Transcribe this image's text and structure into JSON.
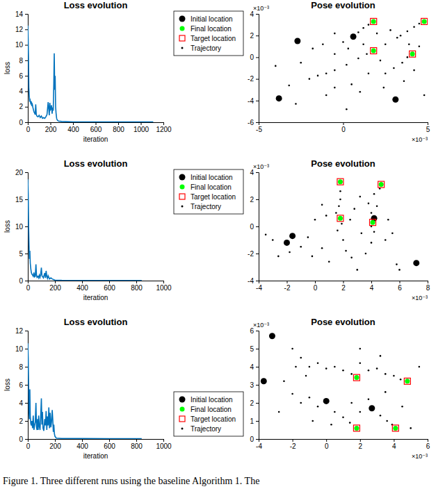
{
  "chart_data": [
    {
      "type": "line",
      "title": "Loss evolution",
      "x_label": "iteration",
      "y_label": "loss",
      "xlim": [
        0,
        1200
      ],
      "xticks": [
        0,
        200,
        400,
        600,
        800,
        1000,
        1200
      ],
      "ylim": [
        0,
        14
      ],
      "yticks": [
        0,
        2,
        4,
        6,
        8,
        10,
        12,
        14
      ],
      "x": [
        0,
        3,
        6,
        9,
        12,
        16,
        20,
        25,
        30,
        35,
        40,
        45,
        50,
        55,
        60,
        65,
        70,
        75,
        80,
        90,
        100,
        110,
        120,
        130,
        140,
        150,
        160,
        170,
        180,
        185,
        190,
        195,
        200,
        205,
        210,
        215,
        220,
        225,
        230,
        234,
        238,
        242,
        246,
        250,
        255,
        260,
        270,
        300,
        400,
        600,
        800,
        1000,
        1110
      ],
      "series": [
        {
          "color": "#0072bd",
          "values": [
            12.5,
            10.8,
            8.5,
            4.5,
            3.6,
            2.8,
            2.9,
            2.5,
            2.7,
            2.1,
            2.3,
            1.9,
            1.6,
            1.3,
            1.2,
            1.0,
            2.3,
            1.0,
            0.8,
            0.7,
            0.9,
            0.6,
            0.8,
            0.5,
            0.6,
            0.5,
            0.7,
            1.0,
            2.6,
            1.8,
            0.9,
            2.5,
            1.6,
            1.7,
            2.2,
            1.1,
            1.9,
            1.5,
            5.0,
            8.9,
            4.2,
            6.0,
            2.0,
            1.2,
            0.5,
            0.3,
            0.15,
            0.1,
            0.05,
            0.04,
            0.03,
            0.03,
            0.03
          ]
        }
      ]
    },
    {
      "type": "scatter",
      "title": "Pose evolution",
      "legend": "top-left",
      "xlim": [
        -5,
        5
      ],
      "xticks": [
        -5,
        0,
        5
      ],
      "ylim": [
        -6,
        4
      ],
      "yticks": [
        -6,
        -4,
        -2,
        0,
        2,
        4
      ],
      "annotations": [
        {
          "text": "×10⁻³",
          "axis": "y"
        },
        {
          "text": "×10⁻³",
          "axis": "x"
        }
      ],
      "series": [
        {
          "name": "Initial location",
          "color": "#000000",
          "marker": "circle",
          "x": [
            -3.8,
            -2.7,
            3.1,
            0.6
          ],
          "values": [
            -3.8,
            1.5,
            -3.9,
            1.9
          ]
        },
        {
          "name": "Final location",
          "color": "#00ff00",
          "marker": "circle",
          "x": [
            1.8,
            4.8,
            1.8,
            4.1
          ],
          "values": [
            3.3,
            3.3,
            0.6,
            0.3
          ]
        },
        {
          "name": "Target location",
          "color": "#ff0000",
          "marker": "square",
          "x": [
            1.8,
            4.8,
            1.8,
            4.1
          ],
          "values": [
            3.3,
            3.3,
            0.6,
            0.3
          ]
        },
        {
          "name": "Trajectory",
          "color": "#000000",
          "marker": "point",
          "x": [
            0.9,
            1.2,
            1.5,
            3.4,
            3.8,
            4.2,
            4.5,
            -1.0,
            -0.5,
            0.2,
            0.9,
            1.4,
            2.5,
            3.0,
            3.5,
            3.8,
            -2.5,
            -2.0,
            -1.8,
            -1.2,
            -0.5,
            0.0,
            -0.5,
            0.3,
            1.2,
            2.0,
            2.5,
            2.8,
            2.2,
            1.5,
            0.5,
            -0.5,
            1.0,
            2.4,
            3.6,
            4.2,
            4.5,
            3.9,
            -3.2,
            -4.0,
            -1.0,
            4.8,
            0.2,
            -2.8,
            3.2,
            -1.5
          ],
          "values": [
            2.3,
            2.7,
            3.0,
            2.0,
            2.4,
            2.8,
            3.1,
            -1.5,
            -1.2,
            -0.7,
            -0.1,
            0.3,
            -1.5,
            -1.0,
            -0.5,
            0.0,
            -0.5,
            -2.0,
            0.8,
            1.2,
            2.2,
            1.4,
            0.3,
            0.8,
            1.2,
            2.2,
            1.2,
            2.5,
            -0.3,
            -1.5,
            -2.5,
            -2.8,
            -3.2,
            -2.8,
            -2.2,
            -1.2,
            1.0,
            1.2,
            -2.6,
            -0.8,
            -3.5,
            -3.5,
            -4.8,
            -4.3,
            1.8,
            -1.7
          ]
        }
      ]
    },
    {
      "type": "line",
      "title": "Loss evolution",
      "x_label": "iteration",
      "y_label": "loss",
      "xlim": [
        0,
        1000
      ],
      "xticks": [
        0,
        200,
        400,
        600,
        800,
        1000
      ],
      "ylim": [
        0,
        20
      ],
      "yticks": [
        0,
        5,
        10,
        15,
        20
      ],
      "x": [
        0,
        3,
        6,
        9,
        12,
        15,
        18,
        22,
        26,
        30,
        35,
        40,
        45,
        50,
        55,
        60,
        64,
        68,
        75,
        80,
        85,
        90,
        95,
        100,
        104,
        110,
        115,
        120,
        125,
        130,
        135,
        140,
        145,
        150,
        160,
        170,
        180,
        190,
        200,
        250,
        400,
        600,
        840
      ],
      "series": [
        {
          "color": "#0072bd",
          "values": [
            18.7,
            16,
            10,
            6.5,
            4.0,
            5.5,
            3.2,
            2.2,
            1.5,
            1.2,
            1.0,
            0.8,
            1.5,
            0.7,
            0.8,
            3.0,
            1.0,
            0.6,
            0.8,
            0.5,
            1.0,
            0.6,
            1.2,
            2.4,
            0.9,
            0.7,
            0.5,
            1.0,
            1.4,
            0.5,
            1.8,
            0.8,
            0.4,
            0.9,
            0.3,
            0.5,
            0.3,
            0.2,
            0.1,
            0.05,
            0.04,
            0.03,
            0.03
          ]
        }
      ]
    },
    {
      "type": "scatter",
      "title": "Pose evolution",
      "legend": "top-left",
      "xlim": [
        -4,
        8
      ],
      "xticks": [
        -4,
        -2,
        0,
        2,
        4,
        6,
        8
      ],
      "ylim": [
        -4,
        4
      ],
      "yticks": [
        -4,
        -2,
        0,
        2,
        4
      ],
      "annotations": [
        {
          "text": "×10⁻³",
          "axis": "y"
        },
        {
          "text": "×10⁻³",
          "axis": "x"
        }
      ],
      "series": [
        {
          "name": "Initial location",
          "color": "#000000",
          "marker": "circle",
          "x": [
            -2.0,
            -1.6,
            4.2,
            7.2
          ],
          "values": [
            -1.2,
            -0.7,
            0.6,
            -2.7
          ]
        },
        {
          "name": "Final location",
          "color": "#00ff00",
          "marker": "circle",
          "x": [
            1.8,
            4.7,
            1.8,
            4.1
          ],
          "values": [
            3.3,
            3.1,
            0.6,
            0.3
          ]
        },
        {
          "name": "Target location",
          "color": "#ff0000",
          "marker": "square",
          "x": [
            1.8,
            4.7,
            1.8,
            4.1
          ],
          "values": [
            3.3,
            3.1,
            0.6,
            0.3
          ]
        },
        {
          "name": "Trajectory",
          "color": "#000000",
          "marker": "point",
          "x": [
            1.8,
            1.8,
            1.7,
            1.5,
            1.9,
            1.6,
            2.0,
            2.2,
            2.6,
            3.6,
            4.0,
            4.2,
            4.0,
            4.4,
            4.0,
            3.8,
            4.2,
            4.6,
            3.2,
            2.8,
            0.5,
            0.8,
            0.0,
            -0.5,
            -1.0,
            -1.8,
            -2.6,
            -3.5,
            -3.0,
            -0.2,
            0.5,
            1.0,
            3.0,
            5.0,
            5.5,
            5.8,
            6.0,
            5.2,
            2.5,
            3.3
          ],
          "values": [
            2.6,
            2.0,
            1.5,
            1.0,
            0.2,
            -0.3,
            -1.0,
            -1.8,
            -2.3,
            -2.0,
            -1.2,
            -0.4,
            0.0,
            1.5,
            1.0,
            1.7,
            2.4,
            2.8,
            2.2,
            1.3,
            1.6,
            0.8,
            0.5,
            -0.8,
            -1.5,
            -1.9,
            -2.2,
            -0.6,
            -1.0,
            -2.2,
            -1.6,
            -2.6,
            -3.2,
            -1.0,
            -0.5,
            -2.8,
            -3.2,
            0.5,
            0.5,
            -0.5
          ]
        }
      ]
    },
    {
      "type": "line",
      "title": "Loss evolution",
      "x_label": "iteration",
      "y_label": "loss",
      "xlim": [
        0,
        1000
      ],
      "xticks": [
        0,
        200,
        400,
        600,
        800,
        1000
      ],
      "ylim": [
        0,
        12
      ],
      "yticks": [
        0,
        2,
        4,
        6,
        8,
        10,
        12
      ],
      "x": [
        0,
        3,
        6,
        9,
        12,
        15,
        18,
        22,
        26,
        30,
        35,
        40,
        45,
        50,
        55,
        60,
        64,
        68,
        72,
        76,
        80,
        85,
        90,
        95,
        100,
        104,
        108,
        112,
        118,
        125,
        130,
        135,
        140,
        145,
        150,
        155,
        160,
        165,
        170,
        175,
        180,
        184,
        188,
        192,
        196,
        200,
        210,
        250,
        400,
        600,
        840
      ],
      "series": [
        {
          "color": "#0072bd",
          "values": [
            10.6,
            9.0,
            6.0,
            3.0,
            2.2,
            5.5,
            2.5,
            1.7,
            1.5,
            2.0,
            1.2,
            2.6,
            1.0,
            1.5,
            1.9,
            4.0,
            1.3,
            1.0,
            2.2,
            1.0,
            2.6,
            1.4,
            1.0,
            2.5,
            4.5,
            1.6,
            3.0,
            1.2,
            0.9,
            2.2,
            1.5,
            3.1,
            1.0,
            2.5,
            1.5,
            3.5,
            1.2,
            2.9,
            1.3,
            1.9,
            3.2,
            2.2,
            0.8,
            1.6,
            0.6,
            0.3,
            0.1,
            0.06,
            0.05,
            0.04,
            0.04
          ]
        }
      ]
    },
    {
      "type": "scatter",
      "title": "Pose evolution",
      "legend": "bottom-left",
      "xlim": [
        -4,
        6
      ],
      "xticks": [
        -4,
        -2,
        0,
        2,
        4,
        6
      ],
      "ylim": [
        0,
        6
      ],
      "yticks": [
        0,
        1,
        2,
        3,
        4,
        5,
        6
      ],
      "annotations": [
        {
          "text": "×10⁻³",
          "axis": "y"
        },
        {
          "text": "×10⁻³",
          "axis": "x"
        }
      ],
      "series": [
        {
          "name": "Initial location",
          "color": "#000000",
          "marker": "circle",
          "x": [
            -3.7,
            -3.2,
            0.0,
            2.7
          ],
          "values": [
            3.2,
            5.7,
            2.1,
            1.7
          ]
        },
        {
          "name": "Final location",
          "color": "#00ff00",
          "marker": "circle",
          "x": [
            1.8,
            4.8,
            1.8,
            4.1
          ],
          "values": [
            3.4,
            3.2,
            0.6,
            0.6
          ]
        },
        {
          "name": "Target location",
          "color": "#ff0000",
          "marker": "square",
          "x": [
            1.8,
            4.8,
            1.8,
            4.1
          ],
          "values": [
            3.4,
            3.2,
            0.6,
            0.6
          ]
        },
        {
          "name": "Trajectory",
          "color": "#000000",
          "marker": "point",
          "x": [
            -2.0,
            -1.5,
            -1.0,
            -0.5,
            0.0,
            0.5,
            1.0,
            1.5,
            -1.8,
            -1.2,
            2.0,
            2.5,
            3.0,
            3.5,
            4.0,
            4.4,
            3.2,
            2.0,
            -2.5,
            -2.0,
            -1.5,
            -1.0,
            -0.5,
            0.5,
            1.0,
            1.4,
            -0.8,
            0.3,
            1.5,
            2.0,
            2.5,
            3.2,
            3.6,
            3.9,
            4.5,
            5.0,
            5.5,
            -2.8,
            3.5
          ],
          "values": [
            5.0,
            4.5,
            4.0,
            4.2,
            3.9,
            4.0,
            3.8,
            3.6,
            4.0,
            3.5,
            4.2,
            3.8,
            3.9,
            3.6,
            3.5,
            3.3,
            4.6,
            5.0,
            3.2,
            2.5,
            2.0,
            2.3,
            1.8,
            1.5,
            1.2,
            0.9,
            1.0,
            0.8,
            2.0,
            1.5,
            2.2,
            1.3,
            1.0,
            0.8,
            1.8,
            0.6,
            4.0,
            1.5,
            2.6
          ]
        }
      ]
    }
  ],
  "caption": "Figure 1. Three different runs using the baseline Algorithm 1. The"
}
